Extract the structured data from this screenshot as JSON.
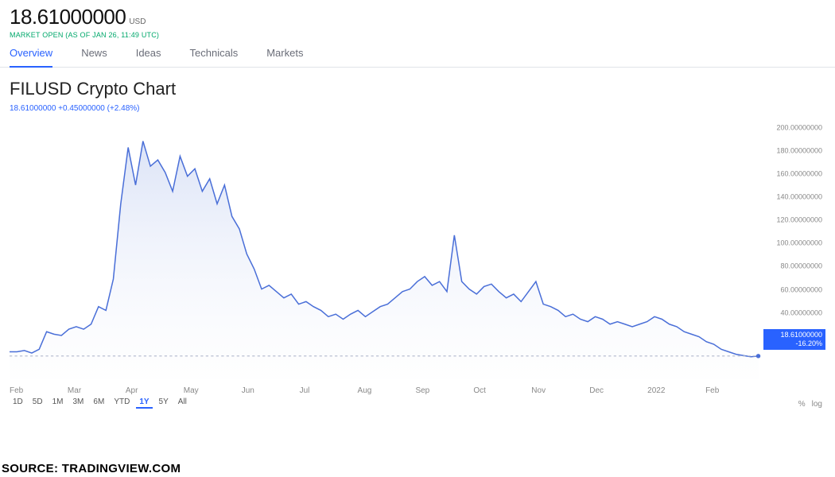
{
  "header": {
    "price": "18.61000000",
    "currency": "USD",
    "market_status": "MARKET OPEN (AS OF JAN 26, 11:49 UTC)"
  },
  "tabs": [
    {
      "label": "Overview",
      "active": true
    },
    {
      "label": "News",
      "active": false
    },
    {
      "label": "Ideas",
      "active": false
    },
    {
      "label": "Technicals",
      "active": false
    },
    {
      "label": "Markets",
      "active": false
    }
  ],
  "chart": {
    "title": "FILUSD Crypto Chart",
    "meta": "18.61000000  +0.45000000 (+2.48%)",
    "type": "area",
    "line_color": "#4a6fd8",
    "fill_top": "#bfcdf0",
    "fill_bottom": "#f4f6fc",
    "fill_opacity": 0.55,
    "background": "#ffffff",
    "dashed_line_color": "#b0b8cc",
    "line_width": 1.4,
    "ylim": [
      0,
      210
    ],
    "ytick_step": 20,
    "y_format": ".8f",
    "x_categories": [
      "Feb",
      "Mar",
      "Apr",
      "May",
      "Jun",
      "Jul",
      "Aug",
      "Sep",
      "Oct",
      "Nov",
      "Dec",
      "2022",
      "Feb"
    ],
    "series": [
      22,
      22,
      23,
      21,
      24,
      38,
      36,
      35,
      40,
      42,
      40,
      44,
      58,
      55,
      80,
      140,
      185,
      155,
      190,
      170,
      175,
      165,
      150,
      178,
      162,
      168,
      150,
      160,
      140,
      155,
      130,
      120,
      100,
      88,
      72,
      75,
      70,
      65,
      68,
      60,
      62,
      58,
      55,
      50,
      52,
      48,
      52,
      55,
      50,
      54,
      58,
      60,
      65,
      70,
      72,
      78,
      82,
      75,
      78,
      70,
      115,
      78,
      72,
      68,
      74,
      76,
      70,
      65,
      68,
      62,
      70,
      78,
      60,
      58,
      55,
      50,
      52,
      48,
      46,
      50,
      48,
      44,
      46,
      44,
      42,
      44,
      46,
      50,
      48,
      44,
      42,
      38,
      36,
      34,
      30,
      28,
      24,
      22,
      20,
      19,
      18,
      18.61
    ],
    "current_badge": {
      "value": "18.61000000",
      "change": "-16.20%",
      "color": "#2962ff"
    }
  },
  "ranges": [
    {
      "label": "1D",
      "active": false
    },
    {
      "label": "5D",
      "active": false
    },
    {
      "label": "1M",
      "active": false
    },
    {
      "label": "3M",
      "active": false
    },
    {
      "label": "6M",
      "active": false
    },
    {
      "label": "YTD",
      "active": false
    },
    {
      "label": "1Y",
      "active": true
    },
    {
      "label": "5Y",
      "active": false
    },
    {
      "label": "All",
      "active": false
    }
  ],
  "scale": {
    "percent": "%",
    "log": "log"
  },
  "footer": "SOURCE: TRADINGVIEW.COM"
}
